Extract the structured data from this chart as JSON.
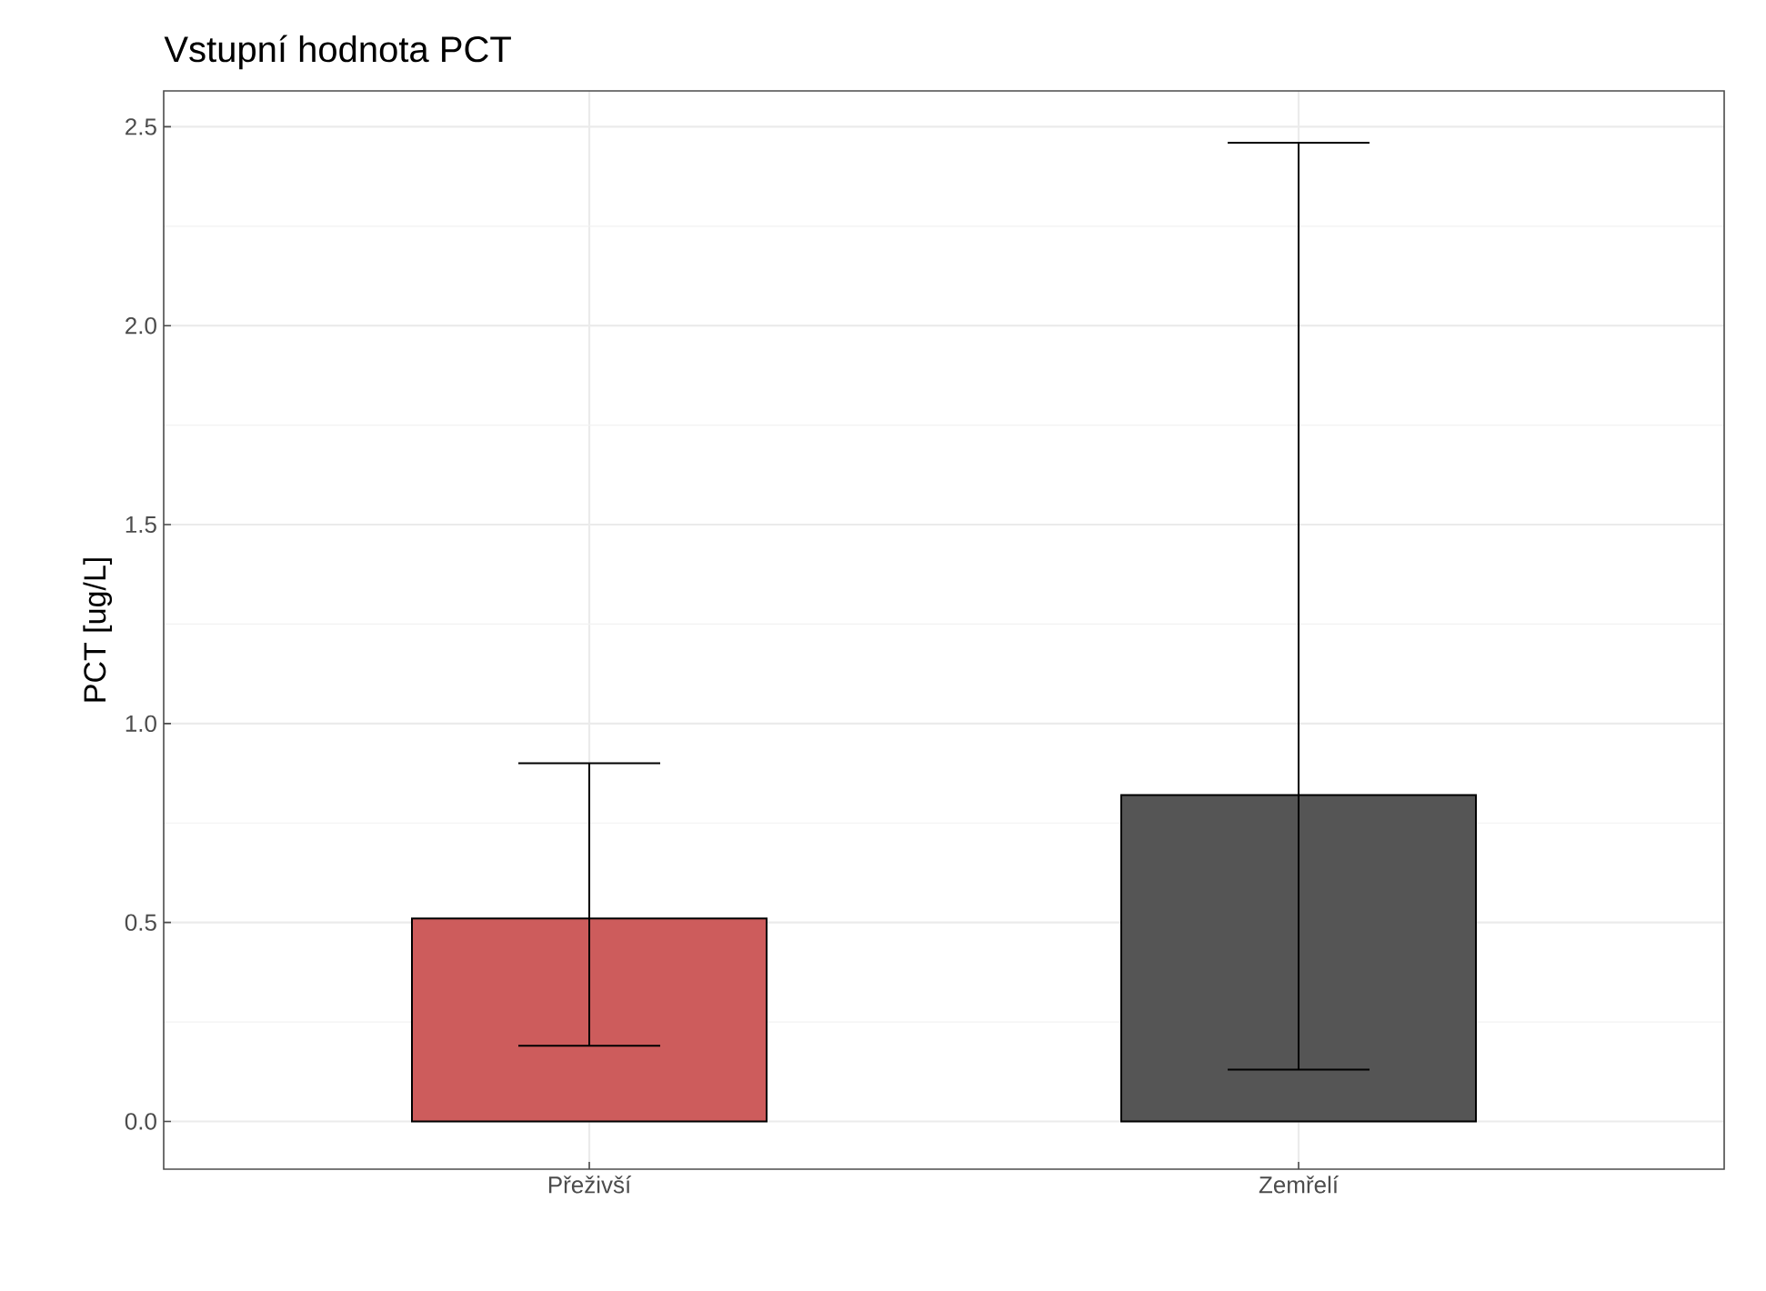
{
  "chart_data": {
    "type": "bar",
    "title": "Vstupní hodnota PCT",
    "ylabel": "PCT [ug/L]",
    "categories": [
      "Přeživší",
      "Zemřelí"
    ],
    "values": [
      0.51,
      0.82
    ],
    "colors": [
      "#cd5c5c",
      "#555555"
    ],
    "errors": [
      [
        0.19,
        0.9
      ],
      [
        0.13,
        2.46
      ]
    ],
    "ylim": [
      -0.12,
      2.59
    ],
    "yticks": [
      {
        "value": 0,
        "label": "0.0"
      },
      {
        "value": 0.5,
        "label": "0.5"
      },
      {
        "value": 1,
        "label": "1.0"
      },
      {
        "value": 1.5,
        "label": "1.5"
      },
      {
        "value": 2,
        "label": "2.0"
      },
      {
        "value": 2.5,
        "label": "2.5"
      }
    ],
    "grid": true
  }
}
